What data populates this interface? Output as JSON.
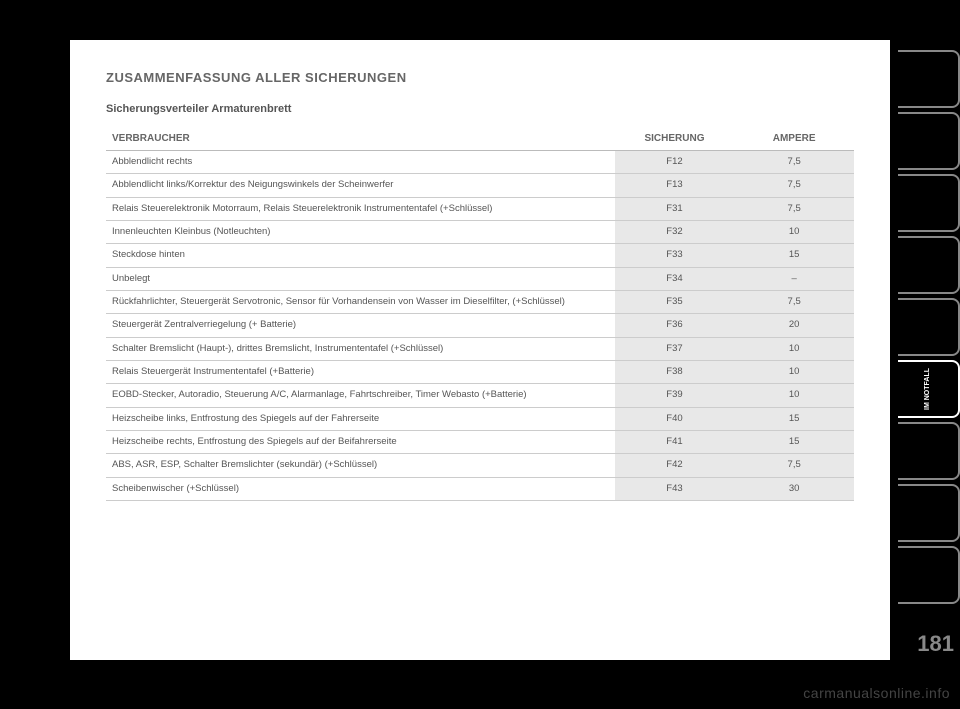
{
  "title": "ZUSAMMENFASSUNG ALLER SICHERUNGEN",
  "subtitle": "Sicherungsverteiler Armaturenbrett",
  "columns": {
    "desc": "VERBRAUCHER",
    "fuse": "SICHERUNG",
    "amp": "AMPERE"
  },
  "rows": [
    {
      "desc": "Abblendlicht rechts",
      "fuse": "F12",
      "amp": "7,5"
    },
    {
      "desc": "Abblendlicht links/Korrektur des Neigungswinkels der Scheinwerfer",
      "fuse": "F13",
      "amp": "7,5"
    },
    {
      "desc": "Relais Steuerelektronik Motorraum, Relais Steuerelektronik Instrumententafel (+Schlüssel)",
      "fuse": "F31",
      "amp": "7,5"
    },
    {
      "desc": "Innenleuchten Kleinbus (Notleuchten)",
      "fuse": "F32",
      "amp": "10"
    },
    {
      "desc": "Steckdose hinten",
      "fuse": "F33",
      "amp": "15"
    },
    {
      "desc": "Unbelegt",
      "fuse": "F34",
      "amp": "–"
    },
    {
      "desc": "Rückfahrlichter, Steuergerät Servotronic, Sensor für Vorhandensein von Wasser im Dieselfilter, (+Schlüssel)",
      "fuse": "F35",
      "amp": "7,5"
    },
    {
      "desc": "Steuergerät Zentralverriegelung (+ Batterie)",
      "fuse": "F36",
      "amp": "20"
    },
    {
      "desc": "Schalter Bremslicht (Haupt-), drittes Bremslicht, Instrumententafel (+Schlüssel)",
      "fuse": "F37",
      "amp": "10"
    },
    {
      "desc": "Relais Steuergerät Instrumententafel (+Batterie)",
      "fuse": "F38",
      "amp": "10"
    },
    {
      "desc": "EOBD-Stecker, Autoradio, Steuerung A/C, Alarmanlage, Fahrtschreiber, Timer Webasto (+Batterie)",
      "fuse": "F39",
      "amp": "10"
    },
    {
      "desc": "Heizscheibe links, Entfrostung des Spiegels auf der Fahrerseite",
      "fuse": "F40",
      "amp": "15"
    },
    {
      "desc": "Heizscheibe rechts, Entfrostung des Spiegels auf der Beifahrerseite",
      "fuse": "F41",
      "amp": "15"
    },
    {
      "desc": "ABS, ASR, ESP, Schalter Bremslichter (sekundär) (+Schlüssel)",
      "fuse": "F42",
      "amp": "7,5"
    },
    {
      "desc": "Scheibenwischer (+Schlüssel)",
      "fuse": "F43",
      "amp": "30"
    }
  ],
  "tabs": [
    {
      "label": "",
      "active": false
    },
    {
      "label": "",
      "active": false
    },
    {
      "label": "",
      "active": false
    },
    {
      "label": "",
      "active": false
    },
    {
      "label": "",
      "active": false
    },
    {
      "label": "IM NOTFALL",
      "active": true
    },
    {
      "label": "",
      "active": false
    },
    {
      "label": "",
      "active": false
    },
    {
      "label": "",
      "active": false
    }
  ],
  "pageNumber": "181",
  "watermark": "carmanualsonline.info"
}
